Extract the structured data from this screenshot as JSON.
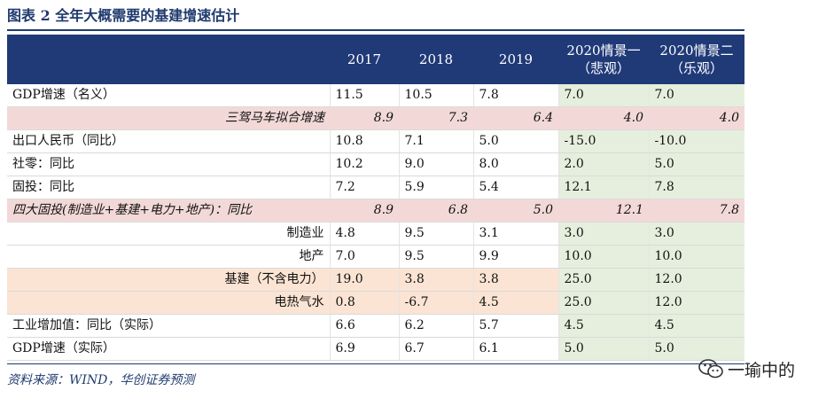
{
  "title": "图表 2   全年大概需要的基建增速估计",
  "header": {
    "blank": "",
    "columns": [
      "2017",
      "2018",
      "2019",
      "2020情景一\n（悲观）",
      "2020情景二\n（乐观）"
    ]
  },
  "rows": [
    {
      "label": "GDP增速（名义）",
      "values": [
        "11.5",
        "10.5",
        "7.8",
        "7.0",
        "7.0"
      ]
    },
    {
      "label": "三驾马车拟合增速",
      "values": [
        "8.9",
        "7.3",
        "6.4",
        "4.0",
        "4.0"
      ]
    },
    {
      "label": "出口人民币（同比）",
      "values": [
        "10.8",
        "7.1",
        "5.0",
        "-15.0",
        "-10.0"
      ]
    },
    {
      "label": "社零：同比",
      "values": [
        "10.2",
        "9.0",
        "8.0",
        "2.0",
        "5.0"
      ]
    },
    {
      "label": "固投：同比",
      "values": [
        "7.2",
        "5.9",
        "5.4",
        "12.1",
        "7.8"
      ]
    },
    {
      "label": "四大固投(制造业+基建+电力+地产)：同比",
      "values": [
        "8.9",
        "6.8",
        "5.0",
        "12.1",
        "7.8"
      ]
    },
    {
      "label": "制造业",
      "values": [
        "4.8",
        "9.5",
        "3.1",
        "3.0",
        "3.0"
      ]
    },
    {
      "label": "地产",
      "values": [
        "7.0",
        "9.5",
        "9.9",
        "10.0",
        "10.0"
      ]
    },
    {
      "label": "基建（不含电力）",
      "values": [
        "19.0",
        "3.8",
        "3.8",
        "25.0",
        "12.0"
      ]
    },
    {
      "label": "电热气水",
      "values": [
        "0.8",
        "-6.7",
        "4.5",
        "25.0",
        "12.0"
      ]
    },
    {
      "label": "工业增加值：同比（实际）",
      "values": [
        "6.6",
        "6.2",
        "5.7",
        "4.5",
        "4.5"
      ]
    },
    {
      "label": "GDP增速（实际）",
      "values": [
        "6.9",
        "6.7",
        "6.1",
        "5.0",
        "5.0"
      ]
    }
  ],
  "source": "资料来源：WIND，华创证券预测",
  "watermark": {
    "text": "一瑜中的",
    "icon": "wechat-icon"
  }
}
